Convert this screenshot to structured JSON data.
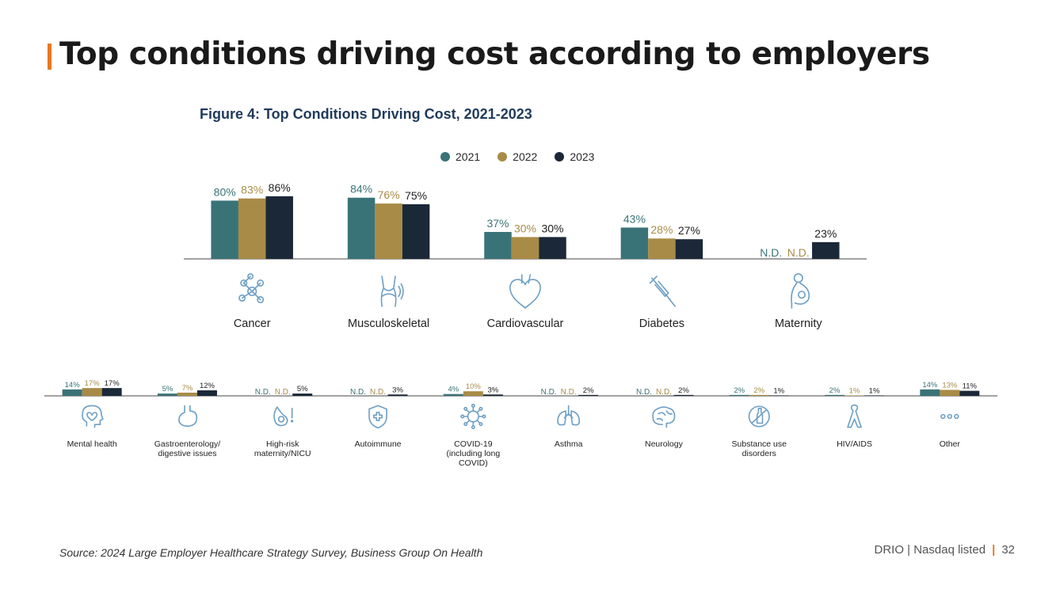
{
  "page": {
    "title": "Top conditions driving cost according to employers",
    "figure_title": "Figure 4: Top Conditions Driving Cost, 2021-2023",
    "source": "Source: 2024 Large Employer Healthcare Strategy Survey, Business Group On Health",
    "footer_brand": "DRIO | Nasdaq listed",
    "footer_sep": "|",
    "page_number": "32"
  },
  "colors": {
    "2021": "#3a7377",
    "2022": "#a88b46",
    "2023": "#1b2838",
    "accent": "#e87722",
    "icon": "#6d9fc4"
  },
  "legend": [
    {
      "label": "2021",
      "color": "#3a7377"
    },
    {
      "label": "2022",
      "color": "#a88b46"
    },
    {
      "label": "2023",
      "color": "#1b2838"
    }
  ],
  "chart_data": [
    {
      "type": "bar",
      "series": [
        {
          "name": "2021",
          "values": [
            80,
            84,
            37,
            43,
            null
          ]
        },
        {
          "name": "2022",
          "values": [
            83,
            76,
            30,
            28,
            null
          ]
        },
        {
          "name": "2023",
          "values": [
            86,
            75,
            30,
            27,
            23
          ]
        }
      ],
      "categories": [
        "Cancer",
        "Musculoskeletal",
        "Cardiovascular",
        "Diabetes",
        "Maternity"
      ],
      "labels": [
        [
          "80%",
          "83%",
          "86%"
        ],
        [
          "84%",
          "76%",
          "75%"
        ],
        [
          "37%",
          "30%",
          "30%"
        ],
        [
          "43%",
          "28%",
          "27%"
        ],
        [
          "N.D.",
          "N.D.",
          "23%"
        ]
      ],
      "icons": [
        "molecule-icon",
        "joint-icon",
        "heart-icon",
        "syringe-icon",
        "pregnancy-icon"
      ],
      "ylim": [
        0,
        100
      ]
    },
    {
      "type": "bar",
      "series": [
        {
          "name": "2021",
          "values": [
            14,
            5,
            null,
            null,
            4,
            null,
            null,
            2,
            2,
            14
          ]
        },
        {
          "name": "2022",
          "values": [
            17,
            7,
            null,
            null,
            10,
            null,
            null,
            2,
            1,
            13
          ]
        },
        {
          "name": "2023",
          "values": [
            17,
            12,
            5,
            3,
            3,
            2,
            2,
            1,
            1,
            11
          ]
        }
      ],
      "categories": [
        "Mental health",
        "Gastroenterology/\ndigestive issues",
        "High-risk\nmaternity/NICU",
        "Autoimmune",
        "COVID-19\n(including long\nCOVID)",
        "Asthma",
        "Neurology",
        "Substance use\ndisorders",
        "HIV/AIDS",
        "Other"
      ],
      "labels": [
        [
          "14%",
          "17%",
          "17%"
        ],
        [
          "5%",
          "7%",
          "12%"
        ],
        [
          "N.D.",
          "N.D.",
          "5%"
        ],
        [
          "N.D.",
          "N.D.",
          "3%"
        ],
        [
          "4%",
          "10%",
          "3%"
        ],
        [
          "N.D.",
          "N.D.",
          "2%"
        ],
        [
          "N.D.",
          "N.D.",
          "2%"
        ],
        [
          "2%",
          "2%",
          "1%"
        ],
        [
          "2%",
          "1%",
          "1%"
        ],
        [
          "14%",
          "13%",
          "11%"
        ]
      ],
      "icons": [
        "head-heart-icon",
        "stomach-icon",
        "baby-alert-icon",
        "shield-cross-icon",
        "virus-icon",
        "lungs-icon",
        "brain-icon",
        "no-bottle-icon",
        "ribbon-icon",
        "dots-icon"
      ],
      "ylim": [
        0,
        100
      ]
    }
  ]
}
